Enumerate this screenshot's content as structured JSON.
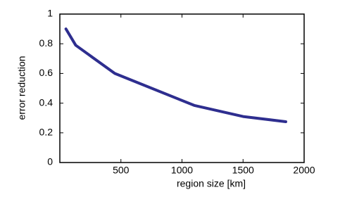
{
  "chart_data": {
    "type": "line",
    "x_label": "region size [km]",
    "y_label": "error reduction",
    "x": [
      50,
      130,
      450,
      1100,
      1500,
      1850
    ],
    "series": [
      {
        "name": "error reduction",
        "color": "#2e2e8f",
        "values": [
          0.9,
          0.79,
          0.6,
          0.385,
          0.31,
          0.275
        ]
      }
    ],
    "xlim": [
      0,
      2000
    ],
    "xticks": [
      500,
      1000,
      1500,
      2000
    ],
    "ylim": [
      0,
      1
    ],
    "yticks": [
      0,
      0.2,
      0.4,
      0.6,
      0.8,
      1
    ]
  }
}
